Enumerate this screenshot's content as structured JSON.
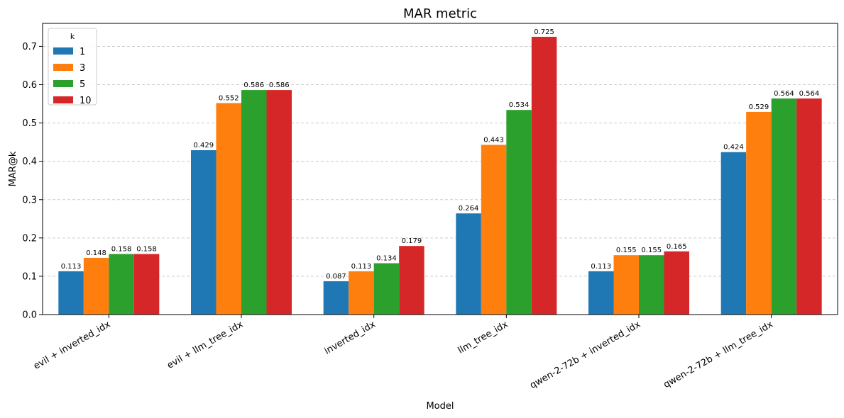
{
  "chart_data": {
    "type": "bar",
    "title": "MAR metric",
    "xlabel": "Model",
    "ylabel": "MAR@k",
    "categories": [
      "evil + inverted_idx",
      "evil + llm_tree_idx",
      "inverted_idx",
      "llm_tree_idx",
      "qwen-2-72b + inverted_idx",
      "qwen-2-72b + llm_tree_idx"
    ],
    "series": [
      {
        "name": "1",
        "color": "#1f77b4",
        "values": [
          0.113,
          0.429,
          0.087,
          0.264,
          0.113,
          0.424
        ]
      },
      {
        "name": "3",
        "color": "#ff7f0e",
        "values": [
          0.148,
          0.552,
          0.113,
          0.443,
          0.155,
          0.529
        ]
      },
      {
        "name": "5",
        "color": "#2ca02c",
        "values": [
          0.158,
          0.586,
          0.134,
          0.534,
          0.155,
          0.564
        ]
      },
      {
        "name": "10",
        "color": "#d62728",
        "values": [
          0.158,
          0.586,
          0.179,
          0.725,
          0.165,
          0.564
        ]
      }
    ],
    "ylim": [
      0,
      0.76
    ],
    "yticks": [
      "0.0",
      "0.1",
      "0.2",
      "0.3",
      "0.4",
      "0.5",
      "0.6",
      "0.7"
    ],
    "grid": "y-dashed",
    "legend": {
      "title": "k",
      "placement": "top-left"
    }
  }
}
